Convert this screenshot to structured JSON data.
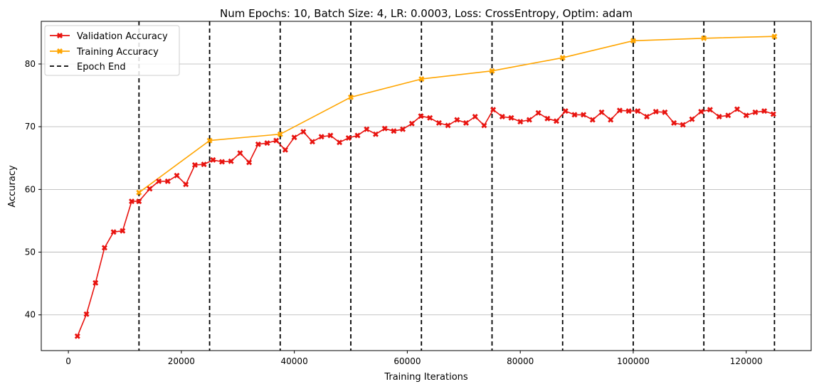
{
  "chart_data": {
    "type": "line",
    "title": "Num Epochs: 10, Batch Size: 4, LR: 0.0003, Loss: CrossEntropy, Optim: adam",
    "xlabel": "Training Iterations",
    "ylabel": "Accuracy",
    "xlim": [
      -4800,
      131500
    ],
    "ylim": [
      34.3,
      86.8
    ],
    "xticks": [
      0,
      20000,
      40000,
      60000,
      80000,
      100000,
      120000
    ],
    "yticks": [
      40,
      50,
      60,
      70,
      80
    ],
    "grid": "horizontal",
    "legend_position": "top-left",
    "series": [
      {
        "name": "Validation Accuracy",
        "color": "#e8130f",
        "marker": "x-filled",
        "x": [
          1600,
          3200,
          4800,
          6400,
          8000,
          9600,
          11200,
          12500,
          14400,
          16000,
          17600,
          19200,
          20800,
          22400,
          24000,
          25600,
          27200,
          28800,
          30400,
          32000,
          33600,
          35200,
          36800,
          38400,
          40000,
          41600,
          43200,
          44800,
          46400,
          48000,
          49600,
          51200,
          52800,
          54400,
          56000,
          57600,
          59200,
          60800,
          62400,
          64000,
          65600,
          67200,
          68800,
          70400,
          72000,
          73600,
          75200,
          76800,
          78400,
          80000,
          81600,
          83200,
          84800,
          86400,
          88000,
          89600,
          91200,
          92800,
          94400,
          96000,
          97600,
          99200,
          100800,
          102400,
          104000,
          105600,
          107200,
          108800,
          110400,
          112000,
          113600,
          115200,
          116800,
          118400,
          120000,
          121600,
          123200,
          124800
        ],
        "values": [
          36.6,
          40.1,
          45.1,
          50.7,
          53.2,
          53.4,
          58.1,
          58.1,
          60.1,
          61.3,
          61.3,
          62.2,
          60.8,
          63.9,
          64.0,
          64.7,
          64.4,
          64.5,
          65.8,
          64.3,
          67.2,
          67.4,
          67.8,
          66.3,
          68.3,
          69.2,
          67.6,
          68.4,
          68.6,
          67.5,
          68.2,
          68.6,
          69.6,
          68.8,
          69.7,
          69.3,
          69.6,
          70.5,
          71.7,
          71.4,
          70.6,
          70.2,
          71.1,
          70.6,
          71.6,
          70.2,
          72.7,
          71.6,
          71.4,
          70.8,
          71.1,
          72.2,
          71.3,
          70.9,
          72.5,
          71.9,
          71.9,
          71.1,
          72.3,
          71.1,
          72.6,
          72.5,
          72.5,
          71.6,
          72.4,
          72.3,
          70.6,
          70.3,
          71.2,
          72.4,
          72.7,
          71.6,
          71.8,
          72.8,
          71.8,
          72.3,
          72.5,
          72.0
        ]
      },
      {
        "name": "Training Accuracy",
        "color": "#ffa500",
        "marker": "x-filled",
        "x": [
          12500,
          25000,
          37500,
          50000,
          62500,
          75000,
          87500,
          100000,
          112500,
          125000
        ],
        "values": [
          59.5,
          67.8,
          68.8,
          74.7,
          77.6,
          78.9,
          81.0,
          83.7,
          84.1,
          84.4
        ]
      }
    ],
    "vlines": {
      "name": "Epoch End",
      "color": "#000000",
      "style": "dashed",
      "x": [
        12500,
        25000,
        37500,
        50000,
        62500,
        75000,
        87500,
        100000,
        112500,
        125000
      ]
    }
  }
}
